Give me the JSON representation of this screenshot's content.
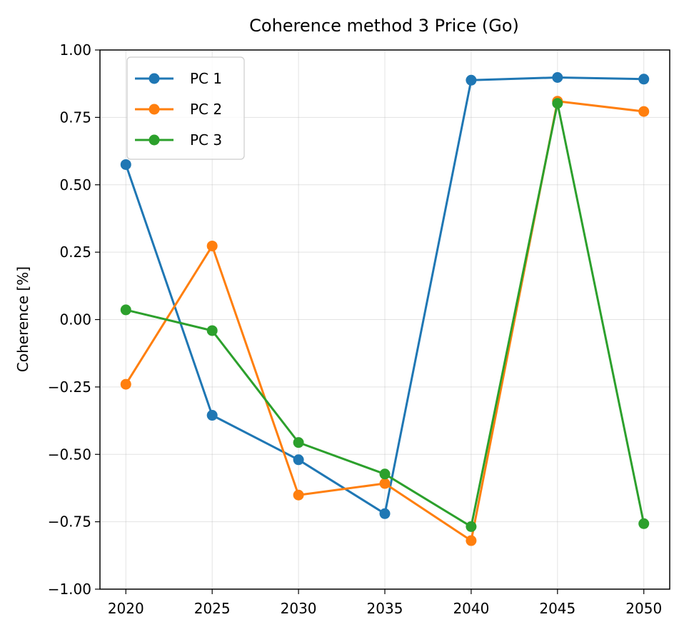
{
  "chart_data": {
    "type": "line",
    "title": "Coherence method 3 Price (Go)",
    "xlabel": "",
    "ylabel": "Coherence [%]",
    "x": [
      2020,
      2025,
      2030,
      2035,
      2040,
      2045,
      2050
    ],
    "x_tick_labels": [
      "2020",
      "2025",
      "2030",
      "2035",
      "2040",
      "2045",
      "2050"
    ],
    "xlim": [
      2018.5,
      2051.5
    ],
    "ylim": [
      -1.0,
      1.0
    ],
    "y_ticks": [
      -1.0,
      -0.75,
      -0.5,
      -0.25,
      0.0,
      0.25,
      0.5,
      0.75,
      1.0
    ],
    "y_tick_labels": [
      "−1.00",
      "−0.75",
      "−0.50",
      "−0.25",
      "0.00",
      "0.25",
      "0.50",
      "0.75",
      "1.00"
    ],
    "grid": true,
    "legend_position": "top-left",
    "series": [
      {
        "name": "PC 1",
        "color": "#1f77b4",
        "values": [
          0.575,
          -0.355,
          -0.52,
          -0.72,
          0.888,
          0.898,
          0.892
        ]
      },
      {
        "name": "PC 2",
        "color": "#ff7f0e",
        "values": [
          -0.24,
          0.273,
          -0.651,
          -0.608,
          -0.82,
          0.81,
          0.772
        ]
      },
      {
        "name": "PC 3",
        "color": "#2ca02c",
        "values": [
          0.036,
          -0.041,
          -0.456,
          -0.573,
          -0.768,
          0.802,
          -0.757
        ]
      }
    ]
  }
}
